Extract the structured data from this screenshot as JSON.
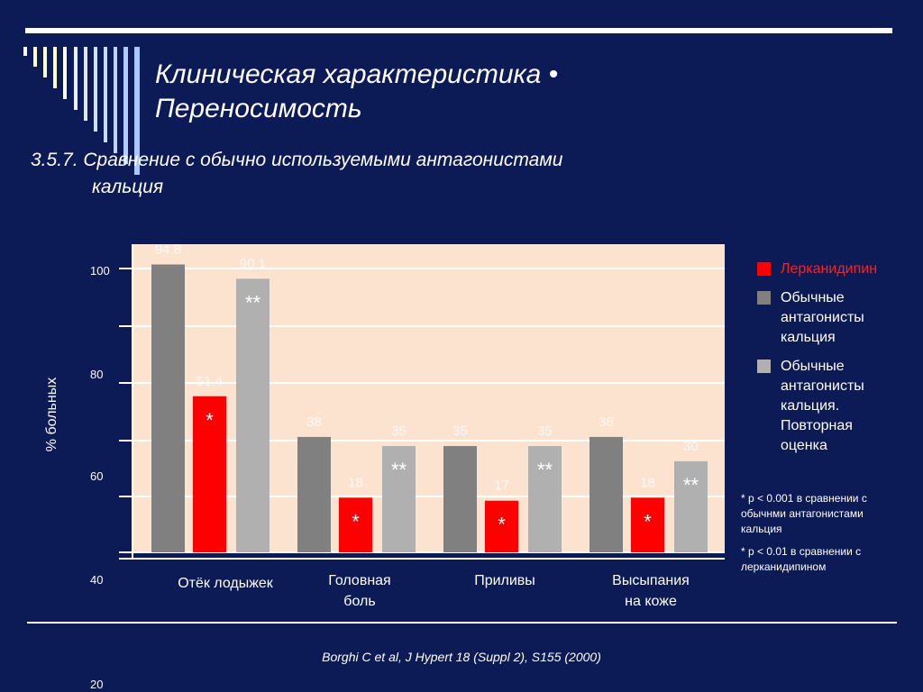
{
  "slide": {
    "title_line1": "Клиническая характеристика •",
    "title_line2": "Переносимость",
    "subtitle_line1": "3.5.7. Сравнение с обычно используемыми антагонистами",
    "subtitle_line2": "кальция",
    "citation": "Borghi C et al, J Hypert 18 (Suppl 2), S155 (2000)"
  },
  "legend": [
    {
      "label": "Лерканидипин",
      "color": "#ff0000"
    },
    {
      "label_lines": [
        "Обычные",
        "антагонисты",
        "кальция"
      ],
      "color": "#808080"
    },
    {
      "label_lines": [
        "Обычные",
        "антагонисты",
        "кальция.",
        "Повторная",
        "оценка"
      ],
      "color": "#b0b0b0"
    }
  ],
  "notes": [
    {
      "lines": [
        "*  p < 0.001 в сравнении с",
        "обычнми антагонистами",
        "кальция"
      ]
    },
    {
      "lines": [
        "*  p < 0.01 в сравнении с",
        " лерканидипином"
      ]
    }
  ],
  "chart_data": {
    "type": "bar",
    "ylabel": "% больных",
    "yticks": [
      "100",
      "80",
      "60",
      "40",
      "20"
    ],
    "categories": [
      {
        "lines": [
          "Отёк лодыжек"
        ]
      },
      {
        "lines": [
          "Головная",
          "боль"
        ]
      },
      {
        "lines": [
          "Приливы"
        ]
      },
      {
        "lines": [
          "Высыпания",
          "на коже"
        ]
      }
    ],
    "series": [
      {
        "color": "#808080",
        "values": [
          94.8,
          38,
          35,
          38
        ],
        "labels": [
          "94.8",
          "38",
          "35",
          "38"
        ],
        "marks": [
          "",
          "",
          "",
          ""
        ]
      },
      {
        "color": "#ff0000",
        "values": [
          51.4,
          18,
          17,
          18
        ],
        "labels": [
          "51.4",
          "18",
          "17",
          "18"
        ],
        "marks": [
          "*",
          "*",
          "*",
          "*"
        ]
      },
      {
        "color": "#b0b0b0",
        "values": [
          90.1,
          35,
          35,
          30
        ],
        "labels": [
          "90.1",
          "35",
          "35",
          "30"
        ],
        "marks": [
          "**",
          "**",
          "**",
          "**"
        ]
      }
    ],
    "plot_background": "#fbe3cf",
    "grid": true
  }
}
